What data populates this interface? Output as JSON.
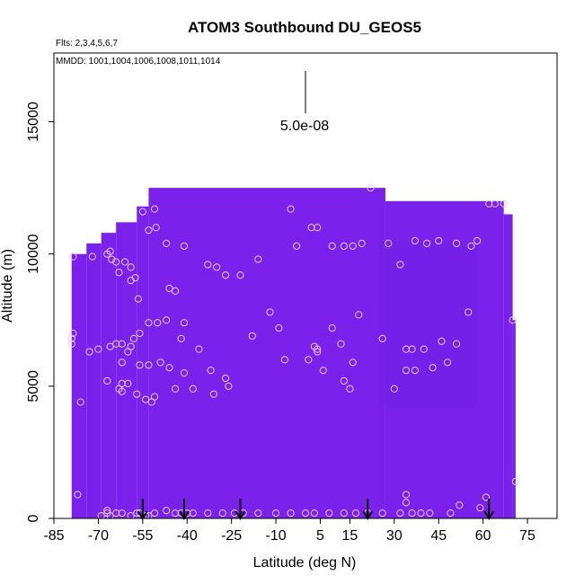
{
  "chart_data": {
    "type": "heatmap",
    "title": "ATOM3 Southbound DU_GEOS5",
    "flights_label": "Flts: 2,3,4,5,6,7",
    "dates_label": "MMDD: 1001,1004,1006,1008,1011,1014",
    "xlabel": "Latitude (deg N)",
    "ylabel": "Altitude (m)",
    "xlim": [
      -85,
      85
    ],
    "ylim": [
      0,
      17600
    ],
    "x_ticks": [
      -85,
      -70,
      -55,
      -40,
      -25,
      -10,
      5,
      15,
      30,
      45,
      60,
      75
    ],
    "y_ticks": [
      0,
      5000,
      10000,
      15000
    ],
    "scale_bar_label": "5.0e-08",
    "colors": {
      "field_main": "#7a22ec",
      "field_dark": "#6f1fe6",
      "marker": "#e8c8f5",
      "arrow": "#000000"
    },
    "field_columns": [
      {
        "x0": -79,
        "x1": -74,
        "top": 10000
      },
      {
        "x0": -74,
        "x1": -69,
        "top": 10400
      },
      {
        "x0": -69,
        "x1": -64,
        "top": 10800
      },
      {
        "x0": -64,
        "x1": -57,
        "top": 11200
      },
      {
        "x0": -57,
        "x1": -53,
        "top": 11800
      },
      {
        "x0": -53,
        "x1": 27,
        "top": 12500
      },
      {
        "x0": 27,
        "x1": 67,
        "top": 12000
      },
      {
        "x0": 67,
        "x1": 70,
        "top": 11500
      },
      {
        "x0": 70,
        "x1": 71,
        "top": 7500
      }
    ],
    "dark_patch": {
      "x0": 25,
      "x1": 58,
      "y0": 4200,
      "y1": 10500
    },
    "points": [
      [
        -78.5,
        9900
      ],
      [
        -72,
        9900
      ],
      [
        -67,
        10000
      ],
      [
        -66,
        10100
      ],
      [
        -65.5,
        9800
      ],
      [
        -64,
        9700
      ],
      [
        -63,
        9300
      ],
      [
        -61,
        9700
      ],
      [
        -59,
        9500
      ],
      [
        -59,
        9000
      ],
      [
        -57.5,
        9100
      ],
      [
        -56.5,
        8300
      ],
      [
        -53,
        10900
      ],
      [
        -50.5,
        11000
      ],
      [
        -55,
        11600
      ],
      [
        -51,
        11700
      ],
      [
        -47,
        10400
      ],
      [
        -41,
        10300
      ],
      [
        -33,
        9600
      ],
      [
        -30,
        9500
      ],
      [
        -27,
        9200
      ],
      [
        -22,
        9200
      ],
      [
        -16,
        9800
      ],
      [
        -5,
        11700
      ],
      [
        -12,
        7800
      ],
      [
        -9,
        7200
      ],
      [
        -3,
        10300
      ],
      [
        2,
        11000
      ],
      [
        4,
        11000
      ],
      [
        9,
        10300
      ],
      [
        13,
        10300
      ],
      [
        16,
        10300
      ],
      [
        19,
        10400
      ],
      [
        22,
        12500
      ],
      [
        -18,
        6900
      ],
      [
        -36,
        6400
      ],
      [
        -42,
        6800
      ],
      [
        -41,
        7400
      ],
      [
        -47,
        7500
      ],
      [
        -46,
        8700
      ],
      [
        -44,
        8600
      ],
      [
        -50,
        7400
      ],
      [
        -53,
        7400
      ],
      [
        -56,
        7000
      ],
      [
        -58,
        6800
      ],
      [
        -59,
        6500
      ],
      [
        -60,
        6300
      ],
      [
        -62,
        6600
      ],
      [
        -64,
        6600
      ],
      [
        -66,
        6500
      ],
      [
        -70,
        6400
      ],
      [
        -78.5,
        7000
      ],
      [
        -79,
        6800
      ],
      [
        -79,
        6600
      ],
      [
        -73,
        6300
      ],
      [
        -62,
        5900
      ],
      [
        -56,
        5800
      ],
      [
        -53,
        5800
      ],
      [
        -49,
        5900
      ],
      [
        -46,
        5700
      ],
      [
        -41,
        5500
      ],
      [
        -38,
        4900
      ],
      [
        -26,
        5000
      ],
      [
        -27,
        5300
      ],
      [
        -31,
        4700
      ],
      [
        -44,
        4900
      ],
      [
        -51,
        4600
      ],
      [
        -52,
        4400
      ],
      [
        -54,
        4500
      ],
      [
        -57,
        4700
      ],
      [
        -60,
        5100
      ],
      [
        -62,
        5100
      ],
      [
        -62,
        4800
      ],
      [
        -63,
        4900
      ],
      [
        -67,
        5200
      ],
      [
        -76,
        4400
      ],
      [
        -32,
        5600
      ],
      [
        -7,
        6000
      ],
      [
        1,
        6000
      ],
      [
        3,
        6500
      ],
      [
        4,
        6400
      ],
      [
        4,
        6300
      ],
      [
        6,
        5600
      ],
      [
        9,
        7200
      ],
      [
        12,
        6600
      ],
      [
        13,
        5200
      ],
      [
        15,
        4900
      ],
      [
        16,
        5900
      ],
      [
        18,
        7700
      ],
      [
        26,
        6800
      ],
      [
        30,
        4900
      ],
      [
        34,
        5600
      ],
      [
        37,
        5600
      ],
      [
        40,
        6400
      ],
      [
        43,
        5700
      ],
      [
        46,
        6700
      ],
      [
        48,
        5900
      ],
      [
        51,
        6600
      ],
      [
        55,
        7800
      ],
      [
        34,
        6400
      ],
      [
        36,
        6400
      ],
      [
        28,
        10400
      ],
      [
        32,
        9600
      ],
      [
        37,
        10500
      ],
      [
        41,
        10400
      ],
      [
        45,
        10500
      ],
      [
        51,
        10400
      ],
      [
        56,
        10300
      ],
      [
        58,
        10500
      ],
      [
        62,
        11900
      ],
      [
        64,
        11900
      ],
      [
        67,
        11900
      ],
      [
        70,
        7500
      ],
      [
        71,
        1400
      ],
      [
        61,
        800
      ],
      [
        59,
        400
      ],
      [
        52,
        500
      ],
      [
        34,
        900
      ],
      [
        34,
        600
      ],
      [
        -77,
        900
      ],
      [
        -69,
        100
      ],
      [
        -67,
        300
      ],
      [
        -67,
        200
      ],
      [
        -66,
        100
      ],
      [
        -64,
        200
      ],
      [
        -62,
        200
      ],
      [
        -59,
        100
      ],
      [
        -57,
        200
      ],
      [
        -56,
        200
      ],
      [
        -54,
        100
      ],
      [
        -53,
        100
      ],
      [
        -51,
        200
      ],
      [
        -47,
        300
      ],
      [
        -44,
        200
      ],
      [
        -42,
        200
      ],
      [
        -40,
        200
      ],
      [
        -38,
        200
      ],
      [
        -33,
        200
      ],
      [
        -28,
        200
      ],
      [
        -24,
        200
      ],
      [
        -21,
        200
      ],
      [
        -16,
        200
      ],
      [
        -10,
        200
      ],
      [
        -5,
        200
      ],
      [
        0,
        200
      ],
      [
        3,
        200
      ],
      [
        8,
        200
      ],
      [
        13,
        200
      ],
      [
        17,
        200
      ],
      [
        21,
        200
      ],
      [
        26,
        200
      ],
      [
        32,
        200
      ],
      [
        36,
        200
      ],
      [
        39,
        200
      ],
      [
        42,
        200
      ],
      [
        49,
        200
      ]
    ],
    "arrows": [
      -55,
      -41,
      -22,
      21,
      62
    ]
  }
}
